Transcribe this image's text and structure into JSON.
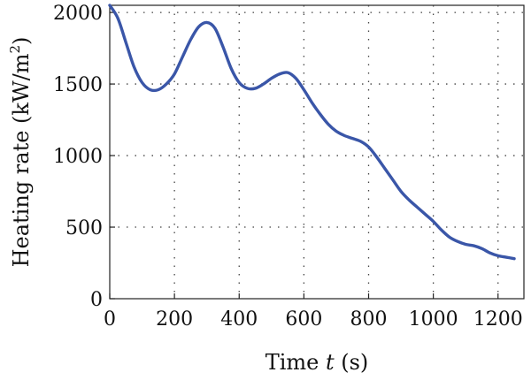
{
  "chart_data": {
    "type": "line",
    "title": "",
    "xlabel": "Time t (s)",
    "xlabel_parts": {
      "prefix": "Time ",
      "var": "t",
      "suffix": " (s)"
    },
    "ylabel": "Heating rate (kW/m2)",
    "ylabel_parts": {
      "base": "Heating rate (kW/m",
      "sup": "2",
      "close": ")"
    },
    "xlim": [
      0,
      1280
    ],
    "ylim": [
      0,
      2050
    ],
    "xticks": [
      0,
      200,
      400,
      600,
      800,
      1000,
      1200
    ],
    "yticks": [
      0,
      500,
      1000,
      1500,
      2000
    ],
    "grid": true,
    "legend": "none",
    "line_color": "#3a56a8",
    "series": [
      {
        "x": [
          0,
          25,
          50,
          75,
          100,
          125,
          150,
          175,
          200,
          225,
          250,
          275,
          300,
          325,
          350,
          375,
          400,
          425,
          450,
          475,
          500,
          525,
          550,
          575,
          600,
          625,
          650,
          675,
          700,
          725,
          750,
          775,
          800,
          825,
          850,
          875,
          900,
          925,
          950,
          975,
          1000,
          1025,
          1050,
          1075,
          1100,
          1125,
          1150,
          1175,
          1200,
          1225,
          1250
        ],
        "y": [
          2050,
          1960,
          1790,
          1620,
          1510,
          1460,
          1460,
          1500,
          1570,
          1690,
          1810,
          1900,
          1930,
          1890,
          1760,
          1610,
          1510,
          1470,
          1470,
          1500,
          1540,
          1570,
          1580,
          1540,
          1460,
          1370,
          1290,
          1220,
          1170,
          1140,
          1120,
          1100,
          1060,
          990,
          910,
          830,
          750,
          690,
          640,
          590,
          540,
          480,
          430,
          400,
          380,
          370,
          350,
          320,
          300,
          290,
          280
        ]
      }
    ]
  }
}
